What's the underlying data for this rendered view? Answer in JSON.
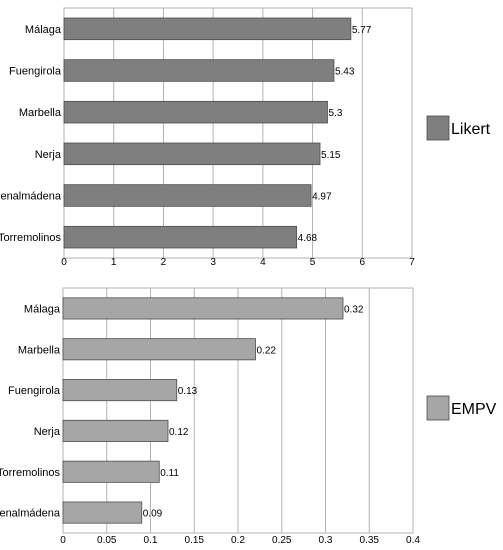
{
  "chart_data": [
    {
      "type": "bar",
      "orientation": "horizontal",
      "categories": [
        "Málaga",
        "Fuengirola",
        "Marbella",
        "Nerja",
        "Benalmádena",
        "Torremolinos"
      ],
      "series": [
        {
          "name": "Likert",
          "values": [
            5.77,
            5.43,
            5.3,
            5.15,
            4.97,
            4.68
          ],
          "color": "#7f7f7f"
        }
      ],
      "value_labels": [
        "5.77",
        "5.43",
        "5.3",
        "5.15",
        "4.97",
        "4.68"
      ],
      "xlim": [
        0,
        7
      ],
      "xticks": [
        "0",
        "1",
        "2",
        "3",
        "4",
        "5",
        "6",
        "7"
      ],
      "grid": true,
      "legend": "right"
    },
    {
      "type": "bar",
      "orientation": "horizontal",
      "categories": [
        "Málaga",
        "Marbella",
        "Fuengirola",
        "Nerja",
        "Torremolinos",
        "Benalmádena"
      ],
      "series": [
        {
          "name": "EMPV",
          "values": [
            0.32,
            0.22,
            0.13,
            0.12,
            0.11,
            0.09
          ],
          "color": "#a6a6a6"
        }
      ],
      "value_labels": [
        "0.32",
        "0.22",
        "0.13",
        "0.12",
        "0.11",
        "0.09"
      ],
      "xlim": [
        0,
        0.4
      ],
      "xticks": [
        "0",
        "0.05",
        "0.1",
        "0.15",
        "0.2",
        "0.25",
        "0.3",
        "0.35",
        "0.4"
      ],
      "grid": true,
      "legend": "right"
    }
  ]
}
